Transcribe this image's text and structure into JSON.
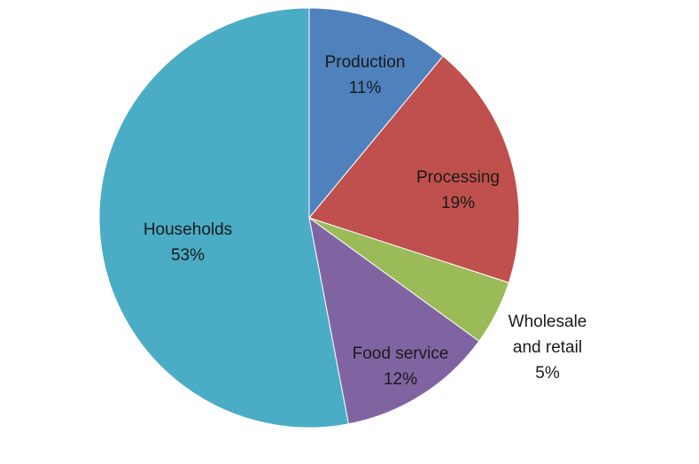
{
  "chart_data": {
    "type": "pie",
    "title": "",
    "legend": "none",
    "slices": [
      {
        "label_lines": [
          "Production"
        ],
        "value": 11,
        "value_label": "11%",
        "color": "#4f81bd"
      },
      {
        "label_lines": [
          "Processing"
        ],
        "value": 19,
        "value_label": "19%",
        "color": "#c0504d"
      },
      {
        "label_lines": [
          "Wholesale",
          "and retail"
        ],
        "value": 5,
        "value_label": "5%",
        "color": "#9bbb59"
      },
      {
        "label_lines": [
          "Food service"
        ],
        "value": 12,
        "value_label": "12%",
        "color": "#8064a2"
      },
      {
        "label_lines": [
          "Households"
        ],
        "value": 53,
        "value_label": "53%",
        "color": "#4bacc6"
      }
    ]
  }
}
